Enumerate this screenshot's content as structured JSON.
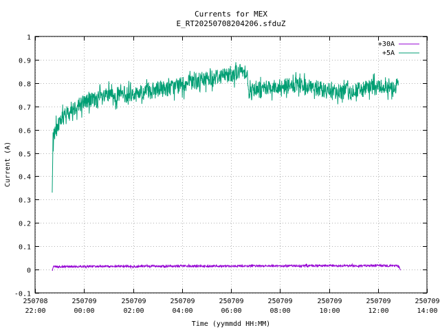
{
  "chart_data": {
    "type": "line",
    "title": "Currents for MEX",
    "subtitle": "E_RT20250708204206.sfduZ",
    "xlabel": "Time (yymmdd HH:MM)",
    "ylabel": "Current (A)",
    "ylim": [
      -0.1,
      1.0
    ],
    "xlim": [
      "250708 22:00",
      "250709 14:00"
    ],
    "grid": true,
    "legend_position": "top-right",
    "x_ticks": [
      {
        "date": "250708",
        "time": "22:00"
      },
      {
        "date": "250709",
        "time": "00:00"
      },
      {
        "date": "250709",
        "time": "02:00"
      },
      {
        "date": "250709",
        "time": "04:00"
      },
      {
        "date": "250709",
        "time": "06:00"
      },
      {
        "date": "250709",
        "time": "08:00"
      },
      {
        "date": "250709",
        "time": "10:00"
      },
      {
        "date": "250709",
        "time": "12:00"
      },
      {
        "date": "250709",
        "time": "14:00"
      }
    ],
    "y_ticks": [
      "-0.1",
      "0",
      "0.1",
      "0.2",
      "0.3",
      "0.4",
      "0.5",
      "0.6",
      "0.7",
      "0.8",
      "0.9",
      "1"
    ],
    "series": [
      {
        "name": "+30A",
        "color": "#9400d3",
        "points": [
          [
            "250708 22:42",
            -0.005
          ],
          [
            "250708 22:45",
            0.012
          ],
          [
            "250709 00:00",
            0.013
          ],
          [
            "250709 02:00",
            0.014
          ],
          [
            "250709 04:00",
            0.015
          ],
          [
            "250709 06:00",
            0.015
          ],
          [
            "250709 08:00",
            0.016
          ],
          [
            "250709 10:00",
            0.016
          ],
          [
            "250709 12:00",
            0.017
          ],
          [
            "250709 12:50",
            0.017
          ],
          [
            "250709 12:55",
            -0.003
          ]
        ]
      },
      {
        "name": "+5A",
        "color": "#009e73",
        "points": [
          [
            "250708 22:42",
            0.33
          ],
          [
            "250708 22:44",
            0.56
          ],
          [
            "250708 23:00",
            0.64
          ],
          [
            "250708 23:30",
            0.69
          ],
          [
            "250709 00:00",
            0.72
          ],
          [
            "250709 01:00",
            0.745
          ],
          [
            "250709 02:00",
            0.755
          ],
          [
            "250709 03:00",
            0.77
          ],
          [
            "250709 04:00",
            0.79
          ],
          [
            "250709 05:00",
            0.82
          ],
          [
            "250709 06:00",
            0.84
          ],
          [
            "250709 06:40",
            0.855
          ],
          [
            "250709 06:42",
            0.755
          ],
          [
            "250709 07:00",
            0.78
          ],
          [
            "250709 08:00",
            0.785
          ],
          [
            "250709 09:00",
            0.79
          ],
          [
            "250709 10:00",
            0.765
          ],
          [
            "250709 11:00",
            0.765
          ],
          [
            "250709 12:00",
            0.785
          ],
          [
            "250709 12:50",
            0.79
          ]
        ]
      }
    ]
  }
}
